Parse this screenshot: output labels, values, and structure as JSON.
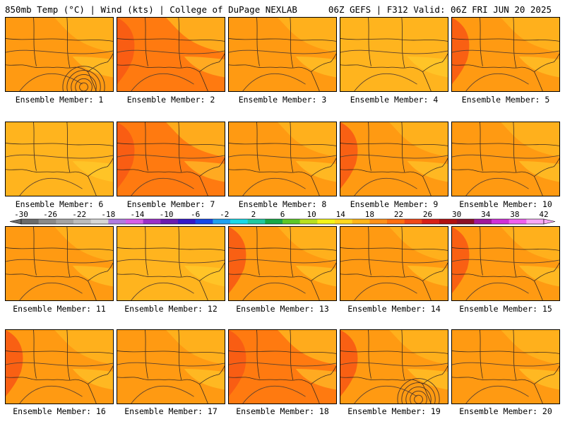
{
  "header": {
    "left": "850mb Temp (°C) | Wind (kts) | College of DuPage NEXLAB",
    "right": "06Z GEFS | F312 Valid: 06Z FRI JUN 20 2025"
  },
  "members": [
    {
      "label": "Ensemble Member: 1",
      "tone": "warm",
      "low_center": true,
      "hot_patch": false
    },
    {
      "label": "Ensemble Member: 2",
      "tone": "hot",
      "low_center": false,
      "hot_patch": true
    },
    {
      "label": "Ensemble Member: 3",
      "tone": "warm",
      "low_center": false,
      "hot_patch": false
    },
    {
      "label": "Ensemble Member: 4",
      "tone": "mild",
      "low_center": false,
      "hot_patch": false
    },
    {
      "label": "Ensemble Member: 5",
      "tone": "warm",
      "low_center": false,
      "hot_patch": true
    },
    {
      "label": "Ensemble Member: 6",
      "tone": "mild",
      "low_center": false,
      "hot_patch": false
    },
    {
      "label": "Ensemble Member: 7",
      "tone": "hot",
      "low_center": false,
      "hot_patch": true
    },
    {
      "label": "Ensemble Member: 8",
      "tone": "warm",
      "low_center": false,
      "hot_patch": false
    },
    {
      "label": "Ensemble Member: 9",
      "tone": "warm",
      "low_center": false,
      "hot_patch": true
    },
    {
      "label": "Ensemble Member: 10",
      "tone": "warm",
      "low_center": false,
      "hot_patch": false
    },
    {
      "label": "Ensemble Member: 11",
      "tone": "warm",
      "low_center": false,
      "hot_patch": false
    },
    {
      "label": "Ensemble Member: 12",
      "tone": "mild",
      "low_center": false,
      "hot_patch": false
    },
    {
      "label": "Ensemble Member: 13",
      "tone": "warm",
      "low_center": false,
      "hot_patch": true
    },
    {
      "label": "Ensemble Member: 14",
      "tone": "warm",
      "low_center": false,
      "hot_patch": false
    },
    {
      "label": "Ensemble Member: 15",
      "tone": "warm",
      "low_center": false,
      "hot_patch": true
    },
    {
      "label": "Ensemble Member: 16",
      "tone": "warm",
      "low_center": false,
      "hot_patch": true
    },
    {
      "label": "Ensemble Member: 17",
      "tone": "warm",
      "low_center": false,
      "hot_patch": false
    },
    {
      "label": "Ensemble Member: 18",
      "tone": "hot",
      "low_center": false,
      "hot_patch": true
    },
    {
      "label": "Ensemble Member: 19",
      "tone": "warm",
      "low_center": true,
      "hot_patch": true
    },
    {
      "label": "Ensemble Member: 20",
      "tone": "warm",
      "low_center": false,
      "hot_patch": false
    }
  ],
  "colorbar": {
    "ticks": [
      "-30",
      "-26",
      "-22",
      "-18",
      "-14",
      "-10",
      "-6",
      "-2",
      "2",
      "6",
      "10",
      "14",
      "18",
      "22",
      "26",
      "30",
      "34",
      "38",
      "42"
    ],
    "colors": [
      "#6b6b6b",
      "#8a8a8a",
      "#a3a3a3",
      "#bcbcbc",
      "#d6d6d6",
      "#b07ce0",
      "#d65fe8",
      "#9b30c8",
      "#6a1bb0",
      "#3318c8",
      "#1548e8",
      "#1fa0f0",
      "#18d8e8",
      "#20c8a0",
      "#18a848",
      "#5cc828",
      "#b8e020",
      "#f4f418",
      "#ffd820",
      "#ffb418",
      "#ff9018",
      "#ff6e10",
      "#f04818",
      "#d82018",
      "#b01010",
      "#8c1028",
      "#a0189c",
      "#d030d8",
      "#f060f0",
      "#f8a8f8"
    ]
  },
  "tones": {
    "mild": "#ffb41e",
    "warm": "#ff9a12",
    "hot": "#ff7a10",
    "patch": "#f85a14",
    "cool": "#ffd230"
  }
}
